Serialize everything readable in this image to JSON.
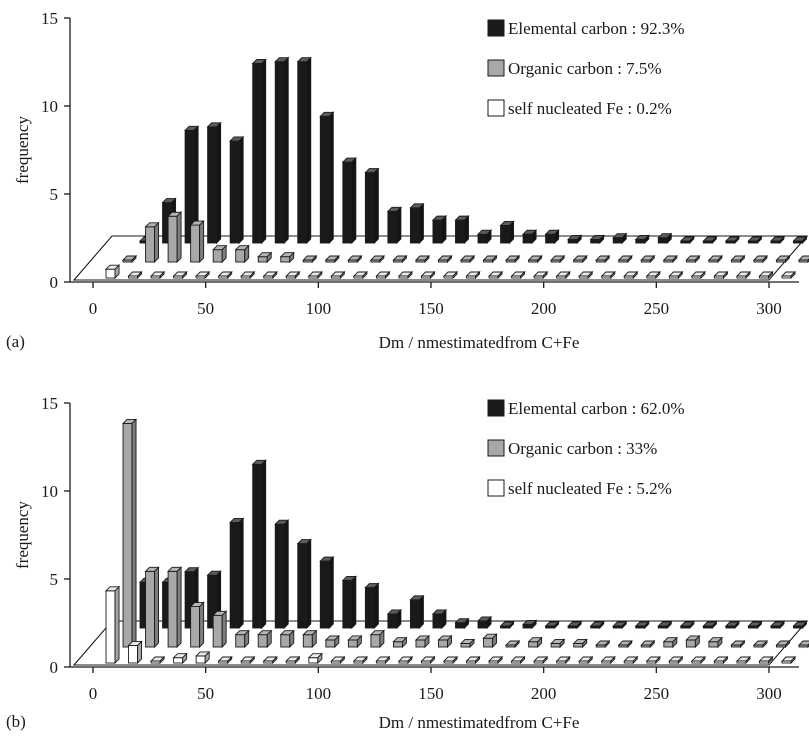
{
  "chart_data": [
    {
      "panel_label": "(a)",
      "type": "bar",
      "style": "3d-depth-bar",
      "xlabel": "Dm / nmestimatedfrom C+Fe",
      "ylabel": "frequency",
      "ylim": [
        0,
        15
      ],
      "xlim": [
        0,
        310
      ],
      "x_ticks": [
        0,
        50,
        100,
        150,
        200,
        250,
        300
      ],
      "y_ticks": [
        0,
        5,
        10,
        15
      ],
      "legend_position": "top-right",
      "x": [
        10,
        20,
        30,
        40,
        50,
        60,
        70,
        80,
        90,
        100,
        110,
        120,
        130,
        140,
        150,
        160,
        170,
        180,
        190,
        200,
        210,
        220,
        230,
        240,
        250,
        260,
        270,
        280,
        290,
        300,
        310
      ],
      "series": [
        {
          "name": "Elemental carbon : 92.3%",
          "color": "#1a1a1a",
          "values": [
            0,
            2.3,
            6.4,
            6.6,
            5.8,
            10.2,
            10.3,
            10.3,
            7.2,
            4.6,
            4.0,
            1.8,
            2.0,
            1.3,
            1.3,
            0.5,
            1.0,
            0.5,
            0.5,
            0.2,
            0.2,
            0.3,
            0.2,
            0.3,
            0.1,
            0.1,
            0.1,
            0.1,
            0.1,
            0.1,
            0.1
          ]
        },
        {
          "name": "Organic carbon : 7.5%",
          "color": "#a8a8a8",
          "values": [
            0,
            2.0,
            2.6,
            2.1,
            0.7,
            0.7,
            0.3,
            0.3,
            0.1,
            0.1,
            0.1,
            0.1,
            0.1,
            0.1,
            0.1,
            0.1,
            0.1,
            0.1,
            0.1,
            0.1,
            0.1,
            0.1,
            0.1,
            0.1,
            0.1,
            0.1,
            0.1,
            0.1,
            0.1,
            0.1,
            0.1
          ]
        },
        {
          "name": "self nucleated Fe : 0.2%",
          "color": "#ffffff",
          "values": [
            0.5,
            0.1,
            0.1,
            0.1,
            0.1,
            0.1,
            0.1,
            0.1,
            0.1,
            0.1,
            0.1,
            0.1,
            0.1,
            0.1,
            0.1,
            0.1,
            0.1,
            0.1,
            0.1,
            0.1,
            0.1,
            0.1,
            0.1,
            0.1,
            0.1,
            0.1,
            0.1,
            0.1,
            0.1,
            0.1,
            0.1
          ]
        }
      ]
    },
    {
      "panel_label": "(b)",
      "type": "bar",
      "style": "3d-depth-bar",
      "xlabel": "Dm / nmestimatedfrom C+Fe",
      "ylabel": "frequency",
      "ylim": [
        0,
        15
      ],
      "xlim": [
        0,
        310
      ],
      "x_ticks": [
        0,
        50,
        100,
        150,
        200,
        250,
        300
      ],
      "y_ticks": [
        0,
        5,
        10,
        15
      ],
      "legend_position": "top-right",
      "x": [
        10,
        20,
        30,
        40,
        50,
        60,
        70,
        80,
        90,
        100,
        110,
        120,
        130,
        140,
        150,
        160,
        170,
        180,
        190,
        200,
        210,
        220,
        230,
        240,
        250,
        260,
        270,
        280,
        290,
        300,
        310
      ],
      "series": [
        {
          "name": "Elemental carbon : 62.0%",
          "color": "#1a1a1a",
          "values": [
            2.6,
            2.6,
            3.2,
            3.0,
            6.0,
            9.3,
            5.9,
            4.8,
            3.8,
            2.7,
            2.3,
            0.8,
            1.6,
            0.8,
            0.3,
            0.4,
            0.1,
            0.2,
            0.1,
            0.1,
            0.1,
            0.1,
            0.1,
            0.1,
            0.1,
            0.1,
            0.1,
            0.1,
            0.1,
            0.1,
            0.1
          ]
        },
        {
          "name": "Organic carbon : 33%",
          "color": "#a8a8a8",
          "values": [
            12.7,
            4.3,
            4.3,
            2.3,
            1.8,
            0.7,
            0.7,
            0.7,
            0.7,
            0.4,
            0.4,
            0.7,
            0.3,
            0.4,
            0.4,
            0.2,
            0.5,
            0.1,
            0.3,
            0.2,
            0.2,
            0.1,
            0.1,
            0.1,
            0.3,
            0.4,
            0.3,
            0.1,
            0.1,
            0.1,
            0.1
          ]
        },
        {
          "name": "self nucleated Fe : 5.2%",
          "color": "#ffffff",
          "values": [
            4.1,
            1.0,
            0.1,
            0.3,
            0.4,
            0.1,
            0.1,
            0.1,
            0.1,
            0.3,
            0.1,
            0.1,
            0.1,
            0.1,
            0.1,
            0.1,
            0.1,
            0.1,
            0.1,
            0.1,
            0.1,
            0.1,
            0.1,
            0.1,
            0.1,
            0.1,
            0.1,
            0.1,
            0.1,
            0.1,
            0.1
          ]
        }
      ]
    }
  ]
}
